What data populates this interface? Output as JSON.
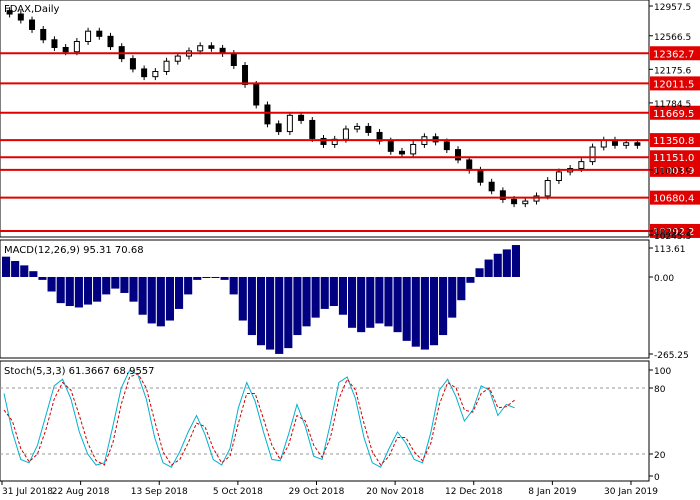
{
  "chart_data": [
    {
      "type": "candlestick",
      "title": "FDAX,Daily",
      "x_labels": [
        "31 Jul 2018",
        "22 Aug 2018",
        "13 Sep 2018",
        "5 Oct 2018",
        "29 Oct 2018",
        "20 Nov 2018",
        "12 Dec 2018",
        "8 Jan 2019",
        "30 Jan 2019"
      ],
      "y_ticks": [
        "12957.5",
        "12566.5",
        "12175.6",
        "11784.5",
        "11003.9",
        "10292.2",
        "10245.3"
      ],
      "ylim": [
        10245,
        12960
      ],
      "levels": [
        {
          "value": 12362.7,
          "label": "12362.7"
        },
        {
          "value": 12011.5,
          "label": "12011.5"
        },
        {
          "value": 11669.5,
          "label": "11669.5"
        },
        {
          "value": 11350.8,
          "label": "11350.8"
        },
        {
          "value": 11151.0,
          "label": "11151.0"
        },
        {
          "value": 11003.9,
          "label": "11003.9"
        },
        {
          "value": 10680.4,
          "label": "10680.4"
        },
        {
          "value": 10292.2,
          "label": "10292.2"
        }
      ],
      "level_color": "#e00000",
      "close_series_approx": [
        12820,
        12750,
        12640,
        12520,
        12430,
        12380,
        12500,
        12620,
        12560,
        12440,
        12300,
        12180,
        12090,
        12150,
        12270,
        12330,
        12390,
        12450,
        12420,
        12360,
        12220,
        12000,
        11760,
        11540,
        11450,
        11640,
        11580,
        11370,
        11300,
        11360,
        11480,
        11510,
        11440,
        11340,
        11220,
        11190,
        11300,
        11390,
        11330,
        11240,
        11120,
        11000,
        10860,
        10760,
        10660,
        10610,
        10640,
        10700,
        10880,
        10980,
        11020,
        11100,
        11270,
        11350,
        11290,
        11320,
        11290
      ]
    },
    {
      "type": "bar",
      "title": "MACD(12,26,9) 95.31 70.68",
      "y_ticks": [
        "113.61",
        "0.00",
        "-265.25"
      ],
      "ylim": [
        -265.25,
        113.61
      ],
      "bar_color": "#000080",
      "values": [
        70,
        55,
        40,
        20,
        -10,
        -50,
        -90,
        -100,
        -105,
        -95,
        -85,
        -60,
        -40,
        -55,
        -85,
        -130,
        -160,
        -170,
        -150,
        -110,
        -60,
        -10,
        0,
        0,
        -10,
        -60,
        -150,
        -200,
        -235,
        -250,
        -265,
        -245,
        -200,
        -170,
        -140,
        -110,
        -100,
        -130,
        -175,
        -190,
        -175,
        -160,
        -170,
        -190,
        -220,
        -240,
        -250,
        -235,
        -200,
        -140,
        -80,
        -20,
        30,
        60,
        80,
        95,
        110
      ]
    },
    {
      "type": "line",
      "title": "Stoch(5,3,3) 61.3667 68.9557",
      "y_ticks": [
        "100",
        "80",
        "20",
        "0"
      ],
      "ylim": [
        0,
        100
      ],
      "series": [
        {
          "color": "#00b0d0",
          "values": [
            75,
            40,
            15,
            12,
            28,
            55,
            82,
            88,
            70,
            40,
            20,
            10,
            12,
            45,
            80,
            96,
            92,
            70,
            35,
            12,
            8,
            22,
            40,
            55,
            38,
            15,
            10,
            25,
            62,
            85,
            68,
            40,
            15,
            14,
            38,
            65,
            45,
            18,
            15,
            48,
            85,
            90,
            70,
            35,
            12,
            8,
            25,
            40,
            30,
            15,
            12,
            40,
            78,
            88,
            72,
            50,
            60,
            82,
            78,
            55,
            65,
            62
          ]
        },
        {
          "color": "#d00000",
          "values": [
            60,
            50,
            25,
            13,
            20,
            42,
            70,
            85,
            78,
            55,
            30,
            14,
            10,
            30,
            65,
            90,
            93,
            80,
            50,
            22,
            10,
            15,
            30,
            48,
            45,
            25,
            12,
            18,
            48,
            75,
            75,
            52,
            28,
            15,
            28,
            55,
            50,
            28,
            17,
            35,
            70,
            88,
            78,
            48,
            22,
            10,
            18,
            35,
            35,
            22,
            14,
            30,
            65,
            85,
            80,
            60,
            58,
            75,
            80,
            62,
            63,
            69
          ]
        }
      ]
    }
  ]
}
